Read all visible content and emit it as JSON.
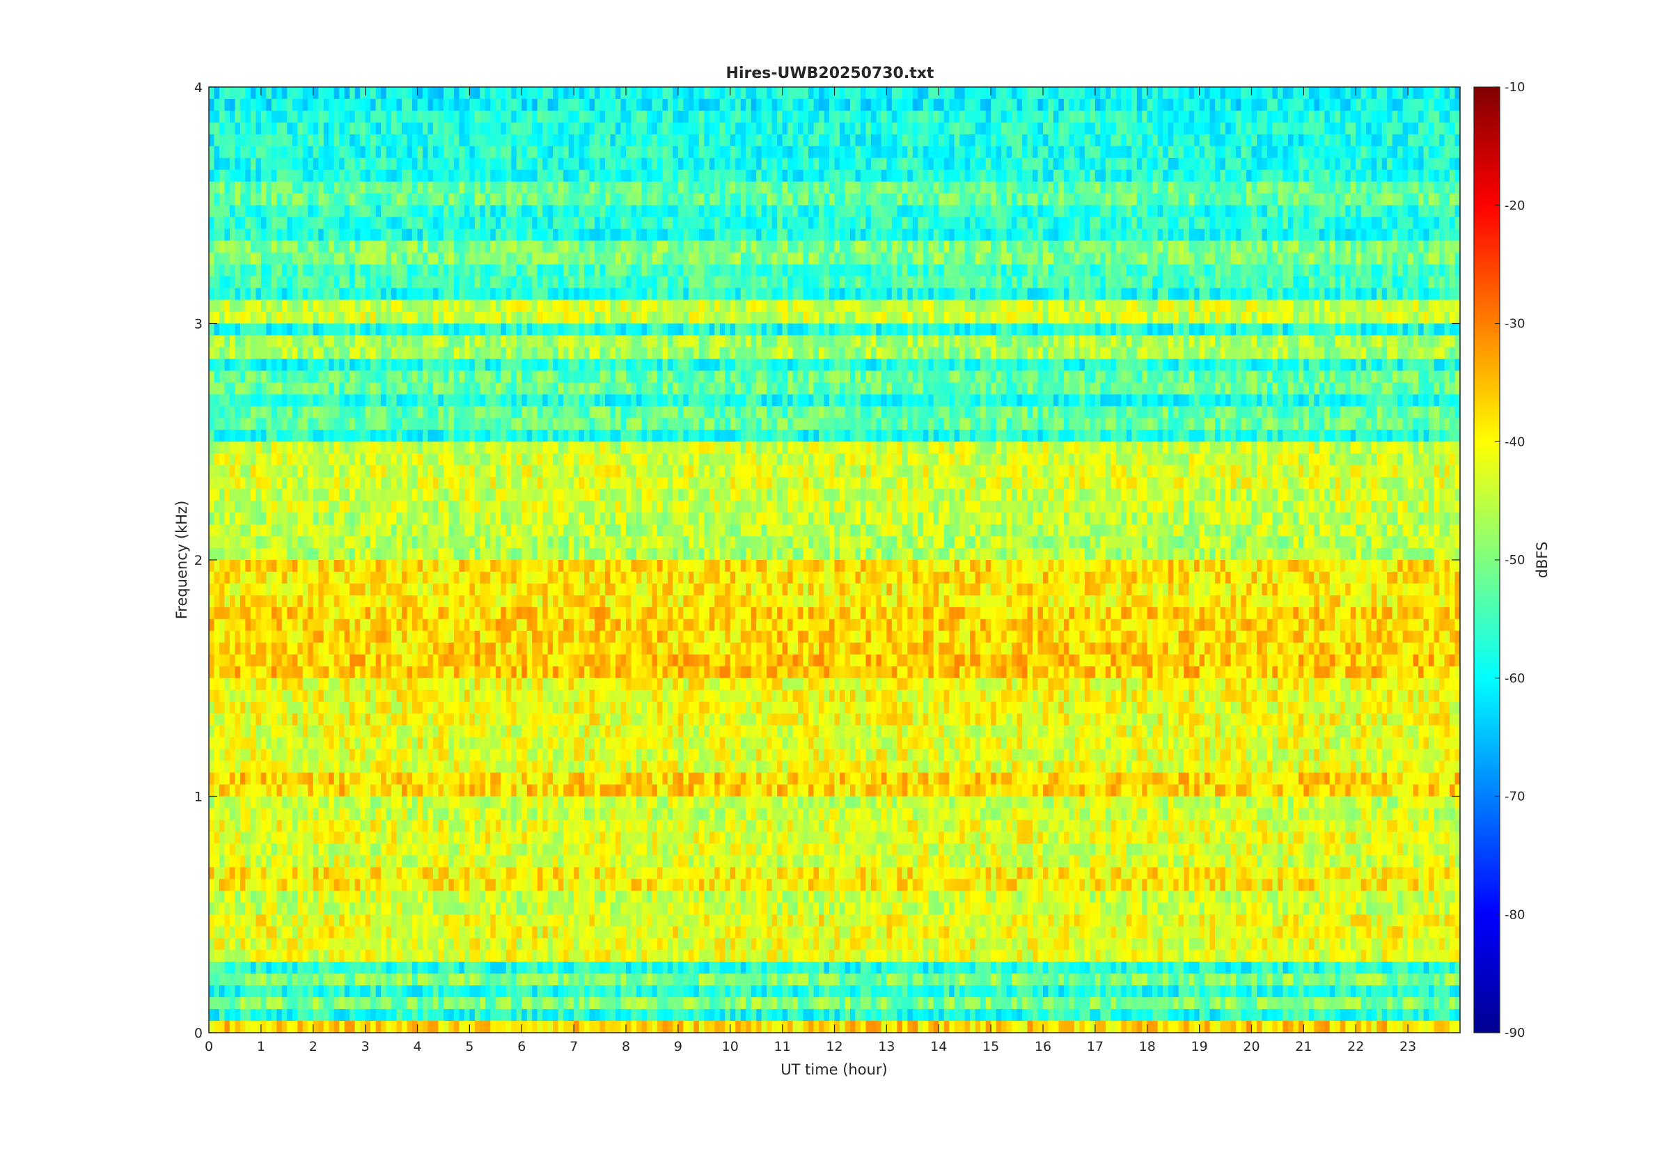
{
  "chart_data": {
    "type": "heatmap",
    "title": "Hires-UWB20250730.txt",
    "xlabel": "UT time (hour)",
    "ylabel": "Frequency (kHz)",
    "xlim": [
      0,
      24
    ],
    "ylim": [
      0,
      4
    ],
    "x_ticks": [
      "0",
      "1",
      "2",
      "3",
      "4",
      "5",
      "6",
      "7",
      "8",
      "9",
      "10",
      "11",
      "12",
      "13",
      "14",
      "15",
      "16",
      "17",
      "18",
      "19",
      "20",
      "21",
      "22",
      "23"
    ],
    "y_ticks": [
      "0",
      "1",
      "2",
      "3",
      "4"
    ],
    "colorbar": {
      "label": "dBFS",
      "range": [
        -90,
        -10
      ],
      "ticks": [
        "-10",
        "-20",
        "-30",
        "-40",
        "-50",
        "-60",
        "-70",
        "-80",
        "-90"
      ],
      "colormap": "jet"
    },
    "bands": [
      {
        "f": 0.04,
        "level": -37
      },
      {
        "f": 0.11,
        "level": -50
      },
      {
        "f": 0.21,
        "level": -50
      },
      {
        "f": 0.35,
        "level": -42
      },
      {
        "f": 0.45,
        "level": -41
      },
      {
        "f": 0.55,
        "level": -44
      },
      {
        "f": 0.65,
        "level": -39
      },
      {
        "f": 0.75,
        "level": -43
      },
      {
        "f": 0.85,
        "level": -42
      },
      {
        "f": 0.95,
        "level": -44
      },
      {
        "f": 1.05,
        "level": -37
      },
      {
        "f": 1.15,
        "level": -42
      },
      {
        "f": 1.25,
        "level": -42
      },
      {
        "f": 1.35,
        "level": -41
      },
      {
        "f": 1.45,
        "level": -41
      },
      {
        "f": 1.55,
        "level": -36
      },
      {
        "f": 1.65,
        "level": -37
      },
      {
        "f": 1.75,
        "level": -37
      },
      {
        "f": 1.85,
        "level": -39
      },
      {
        "f": 1.95,
        "level": -38
      },
      {
        "f": 2.05,
        "level": -46
      },
      {
        "f": 2.15,
        "level": -45
      },
      {
        "f": 2.25,
        "level": -44
      },
      {
        "f": 2.35,
        "level": -43
      },
      {
        "f": 2.45,
        "level": -44
      },
      {
        "f": 2.6,
        "level": -52
      },
      {
        "f": 2.75,
        "level": -52
      },
      {
        "f": 2.9,
        "level": -47
      },
      {
        "f": 3.05,
        "level": -44
      },
      {
        "f": 3.2,
        "level": -55
      },
      {
        "f": 3.3,
        "level": -50
      },
      {
        "f": 3.45,
        "level": -57
      },
      {
        "f": 3.55,
        "level": -52
      },
      {
        "f": 3.7,
        "level": -58
      },
      {
        "f": 3.85,
        "level": -58
      },
      {
        "f": 3.95,
        "level": -60
      }
    ],
    "background_level": -58
  }
}
